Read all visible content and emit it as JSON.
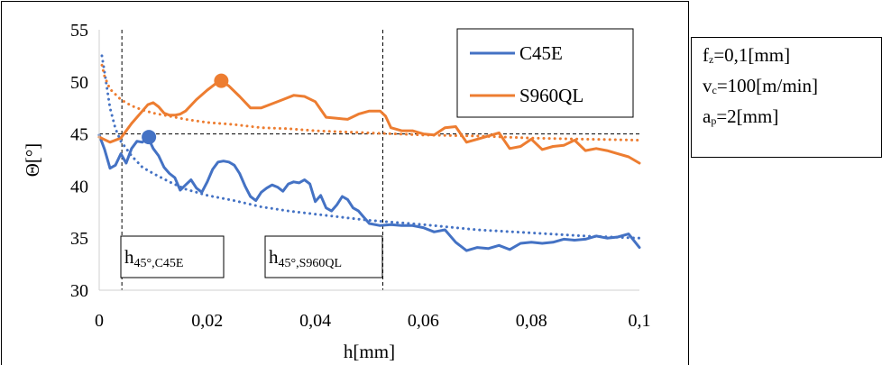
{
  "chart_data": {
    "type": "line",
    "xlabel": "h[mm]",
    "ylabel": "Θ[°]",
    "xlim": [
      0,
      0.1
    ],
    "ylim": [
      30,
      55
    ],
    "xticks": [
      0,
      0.02,
      0.04,
      0.06,
      0.08,
      0.1
    ],
    "xtick_labels": [
      "0",
      "0,02",
      "0,04",
      "0,06",
      "0,08",
      "0,1"
    ],
    "yticks": [
      30,
      35,
      40,
      45,
      50,
      55
    ],
    "ytick_labels": [
      "30",
      "35",
      "40",
      "45",
      "50",
      "55"
    ],
    "grid": false,
    "legend_position": "top-right",
    "series": [
      {
        "name": "C45E",
        "color": "#4472c4",
        "style": "solid",
        "x": [
          0,
          0.001,
          0.002,
          0.003,
          0.004,
          0.005,
          0.006,
          0.007,
          0.008,
          0.009,
          0.01,
          0.011,
          0.012,
          0.013,
          0.014,
          0.015,
          0.016,
          0.017,
          0.018,
          0.019,
          0.02,
          0.021,
          0.022,
          0.023,
          0.024,
          0.025,
          0.026,
          0.027,
          0.028,
          0.029,
          0.03,
          0.031,
          0.032,
          0.033,
          0.034,
          0.035,
          0.036,
          0.037,
          0.038,
          0.039,
          0.04,
          0.041,
          0.042,
          0.043,
          0.044,
          0.045,
          0.046,
          0.047,
          0.048,
          0.049,
          0.05,
          0.052,
          0.054,
          0.056,
          0.058,
          0.06,
          0.062,
          0.064,
          0.066,
          0.068,
          0.07,
          0.072,
          0.074,
          0.076,
          0.078,
          0.08,
          0.082,
          0.084,
          0.086,
          0.088,
          0.09,
          0.092,
          0.094,
          0.096,
          0.098,
          0.1
        ],
        "values": [
          44.9,
          43.5,
          41.7,
          42.0,
          43.1,
          42.2,
          43.6,
          44.3,
          44.2,
          44.7,
          43.6,
          42.9,
          41.8,
          41.2,
          40.8,
          39.6,
          40.1,
          40.6,
          39.8,
          39.4,
          40.4,
          41.6,
          42.3,
          42.4,
          42.3,
          42.0,
          41.2,
          40.0,
          39.0,
          38.6,
          39.4,
          39.8,
          40.1,
          39.9,
          39.5,
          40.2,
          40.4,
          40.3,
          40.6,
          40.2,
          38.5,
          39.1,
          37.9,
          37.6,
          38.2,
          39.0,
          38.7,
          37.9,
          37.6,
          37.0,
          36.4,
          36.2,
          36.3,
          36.2,
          36.2,
          36.0,
          35.6,
          35.8,
          34.6,
          33.8,
          34.1,
          34.0,
          34.3,
          33.9,
          34.5,
          34.6,
          34.5,
          34.6,
          34.9,
          34.8,
          34.9,
          35.2,
          35.0,
          35.1,
          35.4,
          34.1
        ]
      },
      {
        "name": "S960QL",
        "color": "#ed7d31",
        "style": "solid",
        "x": [
          0,
          0.002,
          0.004,
          0.006,
          0.008,
          0.009,
          0.01,
          0.011,
          0.012,
          0.013,
          0.014,
          0.015,
          0.016,
          0.018,
          0.02,
          0.022,
          0.0225,
          0.024,
          0.026,
          0.028,
          0.03,
          0.032,
          0.034,
          0.036,
          0.038,
          0.04,
          0.042,
          0.044,
          0.046,
          0.048,
          0.05,
          0.052,
          0.053,
          0.054,
          0.056,
          0.058,
          0.06,
          0.062,
          0.064,
          0.066,
          0.068,
          0.07,
          0.072,
          0.074,
          0.076,
          0.078,
          0.08,
          0.082,
          0.084,
          0.086,
          0.088,
          0.09,
          0.092,
          0.094,
          0.096,
          0.098,
          0.1
        ],
        "values": [
          44.7,
          44.2,
          44.6,
          46.0,
          47.2,
          47.8,
          48.0,
          47.6,
          47.0,
          46.8,
          46.8,
          46.9,
          47.2,
          48.3,
          49.2,
          50.0,
          50.1,
          49.6,
          48.6,
          47.5,
          47.5,
          47.9,
          48.3,
          48.7,
          48.6,
          48.1,
          46.6,
          46.5,
          46.4,
          46.9,
          47.2,
          47.2,
          46.7,
          45.6,
          45.3,
          45.3,
          45.0,
          44.9,
          45.6,
          45.7,
          44.2,
          44.5,
          44.8,
          45.1,
          43.6,
          43.8,
          44.5,
          43.5,
          43.8,
          43.9,
          44.4,
          43.4,
          43.6,
          43.4,
          43.1,
          42.8,
          42.2
        ]
      },
      {
        "name": "",
        "color": "#4472c4",
        "style": "dotted",
        "x": [
          0.0005,
          0.001,
          0.002,
          0.003,
          0.004,
          0.006,
          0.008,
          0.01,
          0.013,
          0.016,
          0.02,
          0.025,
          0.03,
          0.035,
          0.04,
          0.045,
          0.05,
          0.06,
          0.07,
          0.08,
          0.09,
          0.1
        ],
        "values": [
          52.5,
          50.9,
          47.5,
          45.5,
          44.3,
          42.9,
          41.8,
          41.2,
          40.4,
          39.7,
          39.1,
          38.6,
          38.0,
          37.6,
          37.3,
          37.0,
          36.7,
          36.3,
          35.8,
          35.5,
          35.2,
          35.0
        ]
      },
      {
        "name": "",
        "color": "#ed7d31",
        "style": "dotted",
        "x": [
          0.0005,
          0.001,
          0.002,
          0.004,
          0.006,
          0.008,
          0.01,
          0.013,
          0.016,
          0.02,
          0.025,
          0.03,
          0.035,
          0.04,
          0.045,
          0.05,
          0.06,
          0.07,
          0.08,
          0.09,
          0.1
        ],
        "values": [
          51.6,
          50.5,
          49.3,
          48.3,
          47.7,
          47.3,
          47.0,
          46.7,
          46.4,
          46.1,
          45.9,
          45.6,
          45.5,
          45.3,
          45.2,
          45.1,
          44.9,
          44.8,
          44.6,
          44.5,
          44.4
        ]
      }
    ],
    "markers": [
      {
        "x": 0.0092,
        "y": 44.7,
        "color": "#4472c4"
      },
      {
        "x": 0.0226,
        "y": 50.1,
        "color": "#ed7d31"
      }
    ],
    "reference_lines": {
      "horizontal": [
        45
      ],
      "vertical": [
        0.0042,
        0.0525
      ]
    },
    "annotations": [
      {
        "main": "h",
        "sub": "45°,C45E"
      },
      {
        "main": "h",
        "sub": "45°,S960QL"
      }
    ]
  },
  "params": {
    "lines": [
      {
        "main": "f",
        "sub": "z",
        "rest": "=0,1[mm]"
      },
      {
        "main": "v",
        "sub": "c",
        "rest": "=100[m/min]"
      },
      {
        "main": "a",
        "sub": "p",
        "rest": "=2[mm]"
      }
    ]
  }
}
